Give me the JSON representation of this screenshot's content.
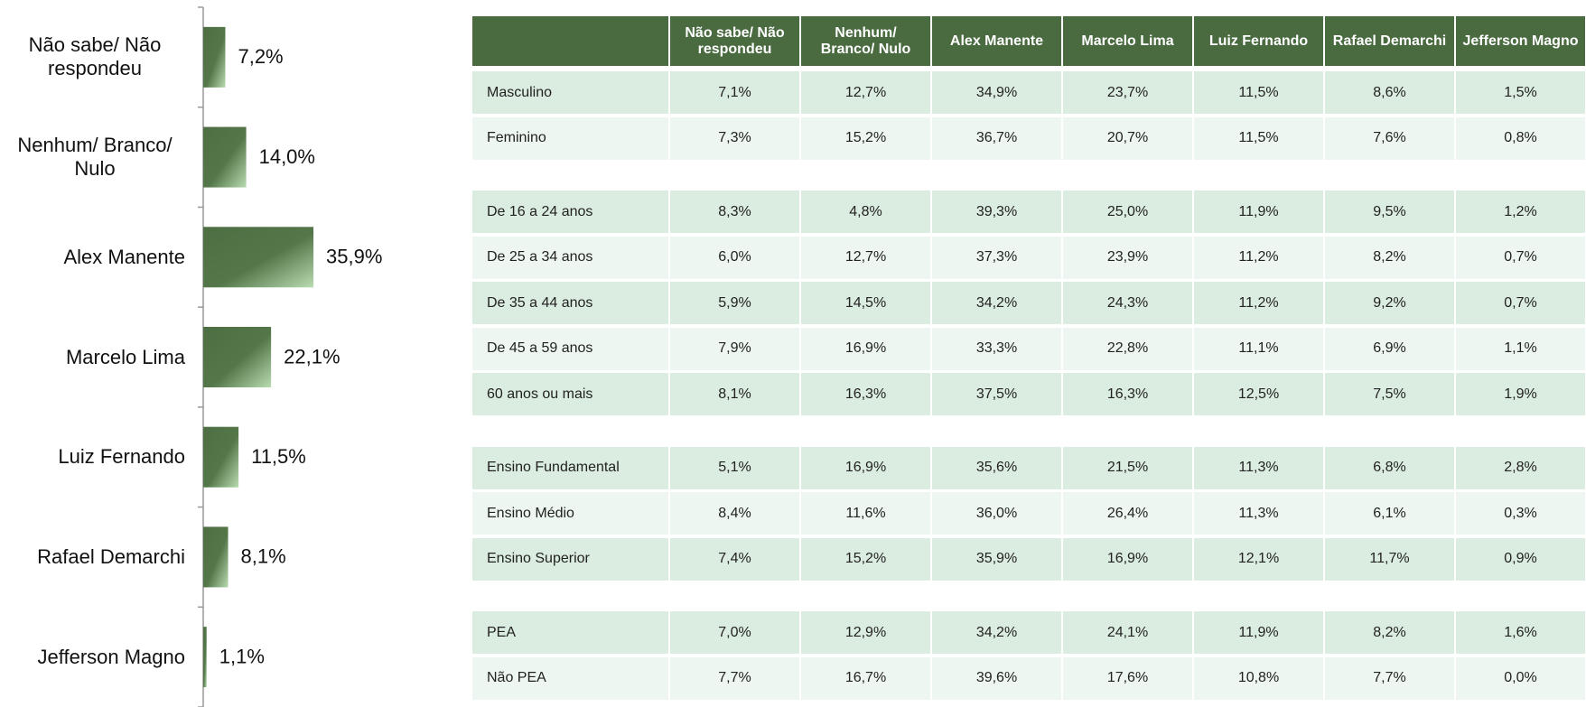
{
  "chart_data": {
    "type": "bar",
    "orientation": "horizontal",
    "categories": [
      "Não sabe/ Não respondeu",
      "Nenhum/ Branco/ Nulo",
      "Alex Manente",
      "Marcelo Lima",
      "Luiz Fernando",
      "Rafael Demarchi",
      "Jefferson Magno"
    ],
    "values": [
      7.2,
      14.0,
      35.9,
      22.1,
      11.5,
      8.1,
      1.1
    ],
    "value_labels": [
      "7,2%",
      "14,0%",
      "35,9%",
      "22,1%",
      "11,5%",
      "8,1%",
      "1,1%"
    ],
    "color": "#4d6e42",
    "xlim": [
      0,
      100
    ],
    "grid": false
  },
  "table": {
    "columns": [
      "Não sabe/ Não respondeu",
      "Nenhum/ Branco/ Nulo",
      "Alex Manente",
      "Marcelo Lima",
      "Luiz Fernando",
      "Rafael Demarchi",
      "Jefferson Magno"
    ],
    "groups": [
      {
        "rows": [
          {
            "label": "Masculino",
            "values": [
              "7,1%",
              "12,7%",
              "34,9%",
              "23,7%",
              "11,5%",
              "8,6%",
              "1,5%"
            ]
          },
          {
            "label": "Feminino",
            "values": [
              "7,3%",
              "15,2%",
              "36,7%",
              "20,7%",
              "11,5%",
              "7,6%",
              "0,8%"
            ]
          }
        ]
      },
      {
        "rows": [
          {
            "label": "De 16 a 24 anos",
            "values": [
              "8,3%",
              "4,8%",
              "39,3%",
              "25,0%",
              "11,9%",
              "9,5%",
              "1,2%"
            ]
          },
          {
            "label": "De 25 a 34 anos",
            "values": [
              "6,0%",
              "12,7%",
              "37,3%",
              "23,9%",
              "11,2%",
              "8,2%",
              "0,7%"
            ]
          },
          {
            "label": "De 35 a 44 anos",
            "values": [
              "5,9%",
              "14,5%",
              "34,2%",
              "24,3%",
              "11,2%",
              "9,2%",
              "0,7%"
            ]
          },
          {
            "label": "De 45 a 59 anos",
            "values": [
              "7,9%",
              "16,9%",
              "33,3%",
              "22,8%",
              "11,1%",
              "6,9%",
              "1,1%"
            ]
          },
          {
            "label": "60 anos ou mais",
            "values": [
              "8,1%",
              "16,3%",
              "37,5%",
              "16,3%",
              "12,5%",
              "7,5%",
              "1,9%"
            ]
          }
        ]
      },
      {
        "rows": [
          {
            "label": "Ensino Fundamental",
            "values": [
              "5,1%",
              "16,9%",
              "35,6%",
              "21,5%",
              "11,3%",
              "6,8%",
              "2,8%"
            ]
          },
          {
            "label": "Ensino Médio",
            "values": [
              "8,4%",
              "11,6%",
              "36,0%",
              "26,4%",
              "11,3%",
              "6,1%",
              "0,3%"
            ]
          },
          {
            "label": "Ensino Superior",
            "values": [
              "7,4%",
              "15,2%",
              "35,9%",
              "16,9%",
              "12,1%",
              "11,7%",
              "0,9%"
            ]
          }
        ]
      },
      {
        "rows": [
          {
            "label": "PEA",
            "values": [
              "7,0%",
              "12,9%",
              "34,2%",
              "24,1%",
              "11,9%",
              "8,2%",
              "1,6%"
            ]
          },
          {
            "label": "Não PEA",
            "values": [
              "7,7%",
              "16,7%",
              "39,6%",
              "17,6%",
              "10,8%",
              "7,7%",
              "0,0%"
            ]
          }
        ]
      }
    ]
  }
}
